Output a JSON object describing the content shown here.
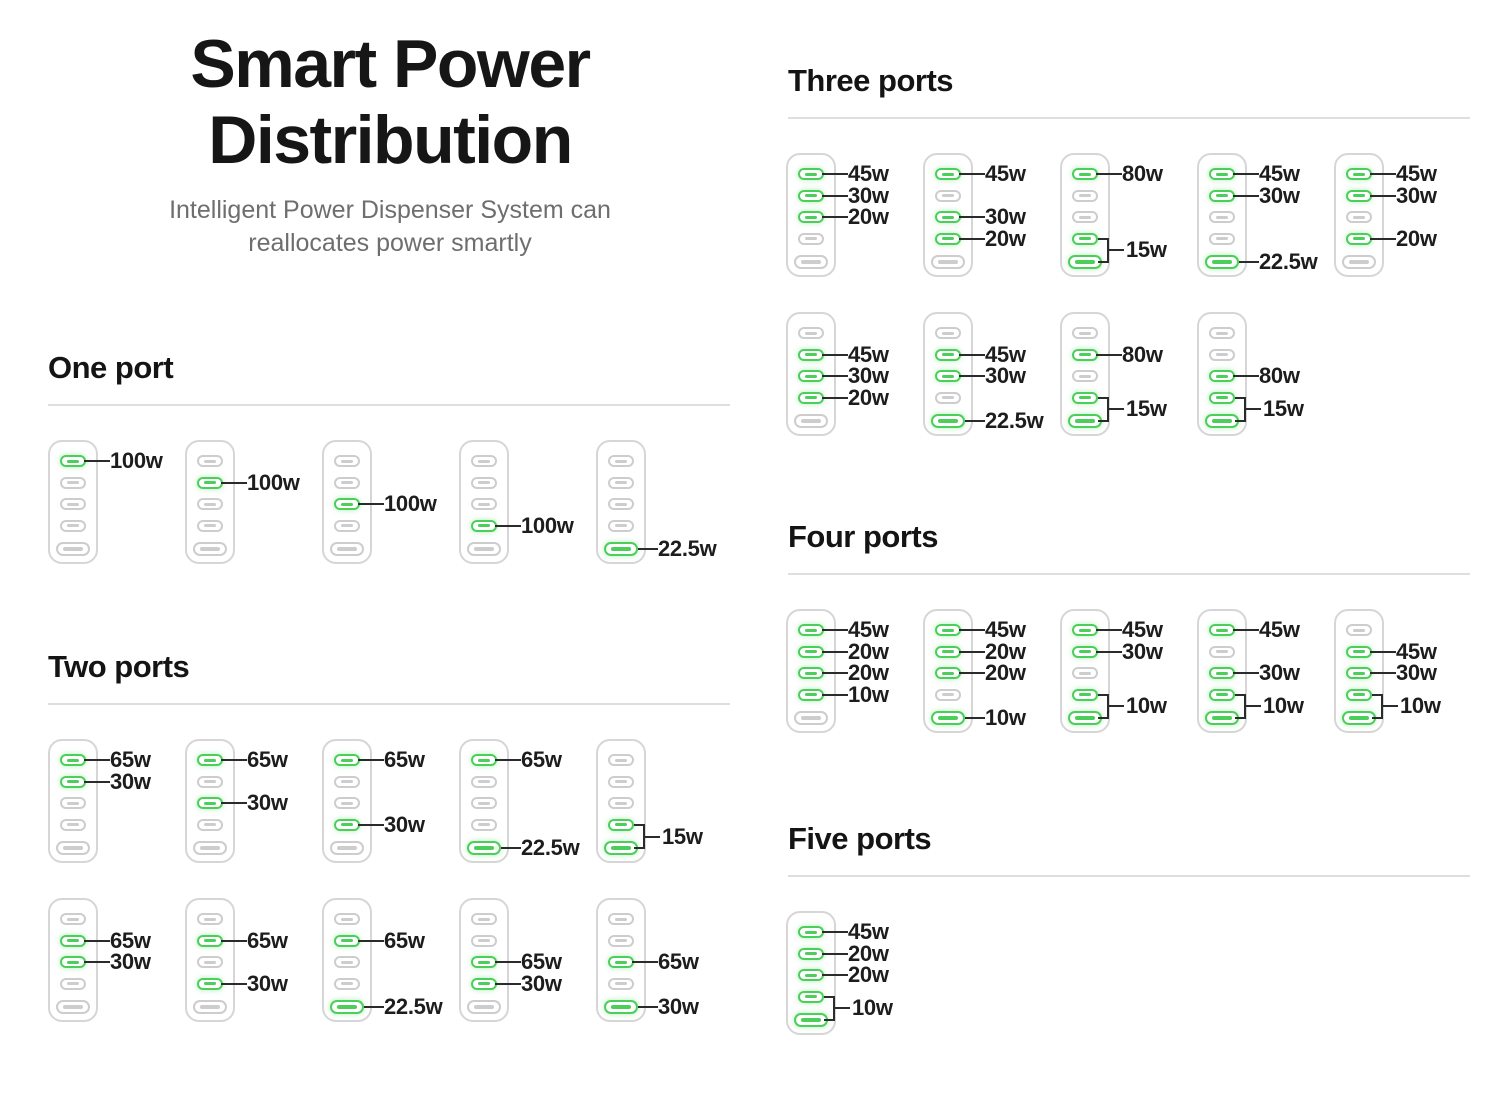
{
  "header": {
    "title_line1": "Smart Power",
    "title_line2": "Distribution",
    "subtitle_line1": "Intelligent Power Dispenser System can",
    "subtitle_line2": "reallocates power smartly"
  },
  "colors": {
    "active_green": "#4ccf5a",
    "inactive_gray": "#cdcdcd",
    "charger_outline": "#d6d6d6",
    "label_text": "#1d1d1d",
    "subtitle_gray": "#6e6e6e",
    "divider_gray": "#dedede",
    "background": "#ffffff"
  },
  "icons": {
    "usb_c_port": "small pill outline with center dash",
    "usb_a_port": "wide pill outline with center dash"
  },
  "sections": [
    {
      "id": "one-port",
      "title": "One port",
      "rows": [
        [
          {
            "ports": [
              {
                "active": true,
                "label": "100w"
              },
              {
                "active": false,
                "label": null
              },
              {
                "active": false,
                "label": null
              },
              {
                "active": false,
                "label": null
              },
              {
                "active": false,
                "label": null
              }
            ],
            "shared_label": null
          },
          {
            "ports": [
              {
                "active": false,
                "label": null
              },
              {
                "active": true,
                "label": "100w"
              },
              {
                "active": false,
                "label": null
              },
              {
                "active": false,
                "label": null
              },
              {
                "active": false,
                "label": null
              }
            ],
            "shared_label": null
          },
          {
            "ports": [
              {
                "active": false,
                "label": null
              },
              {
                "active": false,
                "label": null
              },
              {
                "active": true,
                "label": "100w"
              },
              {
                "active": false,
                "label": null
              },
              {
                "active": false,
                "label": null
              }
            ],
            "shared_label": null
          },
          {
            "ports": [
              {
                "active": false,
                "label": null
              },
              {
                "active": false,
                "label": null
              },
              {
                "active": false,
                "label": null
              },
              {
                "active": true,
                "label": "100w"
              },
              {
                "active": false,
                "label": null
              }
            ],
            "shared_label": null
          },
          {
            "ports": [
              {
                "active": false,
                "label": null
              },
              {
                "active": false,
                "label": null
              },
              {
                "active": false,
                "label": null
              },
              {
                "active": false,
                "label": null
              },
              {
                "active": true,
                "label": "22.5w"
              }
            ],
            "shared_label": null
          }
        ]
      ]
    },
    {
      "id": "two-ports",
      "title": "Two ports",
      "rows": [
        [
          {
            "ports": [
              {
                "active": true,
                "label": "65w"
              },
              {
                "active": true,
                "label": "30w"
              },
              {
                "active": false,
                "label": null
              },
              {
                "active": false,
                "label": null
              },
              {
                "active": false,
                "label": null
              }
            ],
            "shared_label": null
          },
          {
            "ports": [
              {
                "active": true,
                "label": "65w"
              },
              {
                "active": false,
                "label": null
              },
              {
                "active": true,
                "label": "30w"
              },
              {
                "active": false,
                "label": null
              },
              {
                "active": false,
                "label": null
              }
            ],
            "shared_label": null
          },
          {
            "ports": [
              {
                "active": true,
                "label": "65w"
              },
              {
                "active": false,
                "label": null
              },
              {
                "active": false,
                "label": null
              },
              {
                "active": true,
                "label": "30w"
              },
              {
                "active": false,
                "label": null
              }
            ],
            "shared_label": null
          },
          {
            "ports": [
              {
                "active": true,
                "label": "65w"
              },
              {
                "active": false,
                "label": null
              },
              {
                "active": false,
                "label": null
              },
              {
                "active": false,
                "label": null
              },
              {
                "active": true,
                "label": "22.5w"
              }
            ],
            "shared_label": null
          },
          {
            "ports": [
              {
                "active": false,
                "label": null
              },
              {
                "active": false,
                "label": null
              },
              {
                "active": false,
                "label": null
              },
              {
                "active": true,
                "label": null
              },
              {
                "active": true,
                "label": null
              }
            ],
            "shared_label": "15w"
          }
        ],
        [
          {
            "ports": [
              {
                "active": false,
                "label": null
              },
              {
                "active": true,
                "label": "65w"
              },
              {
                "active": true,
                "label": "30w"
              },
              {
                "active": false,
                "label": null
              },
              {
                "active": false,
                "label": null
              }
            ],
            "shared_label": null
          },
          {
            "ports": [
              {
                "active": false,
                "label": null
              },
              {
                "active": true,
                "label": "65w"
              },
              {
                "active": false,
                "label": null
              },
              {
                "active": true,
                "label": "30w"
              },
              {
                "active": false,
                "label": null
              }
            ],
            "shared_label": null
          },
          {
            "ports": [
              {
                "active": false,
                "label": null
              },
              {
                "active": true,
                "label": "65w"
              },
              {
                "active": false,
                "label": null
              },
              {
                "active": false,
                "label": null
              },
              {
                "active": true,
                "label": "22.5w"
              }
            ],
            "shared_label": null
          },
          {
            "ports": [
              {
                "active": false,
                "label": null
              },
              {
                "active": false,
                "label": null
              },
              {
                "active": true,
                "label": "65w"
              },
              {
                "active": true,
                "label": "30w"
              },
              {
                "active": false,
                "label": null
              }
            ],
            "shared_label": null
          },
          {
            "ports": [
              {
                "active": false,
                "label": null
              },
              {
                "active": false,
                "label": null
              },
              {
                "active": true,
                "label": "65w"
              },
              {
                "active": false,
                "label": null
              },
              {
                "active": true,
                "label": "30w"
              }
            ],
            "shared_label": null
          }
        ]
      ]
    },
    {
      "id": "three-ports",
      "title": "Three ports",
      "rows": [
        [
          {
            "ports": [
              {
                "active": true,
                "label": "45w"
              },
              {
                "active": true,
                "label": "30w"
              },
              {
                "active": true,
                "label": "20w"
              },
              {
                "active": false,
                "label": null
              },
              {
                "active": false,
                "label": null
              }
            ],
            "shared_label": null
          },
          {
            "ports": [
              {
                "active": true,
                "label": "45w"
              },
              {
                "active": false,
                "label": null
              },
              {
                "active": true,
                "label": "30w"
              },
              {
                "active": true,
                "label": "20w"
              },
              {
                "active": false,
                "label": null
              }
            ],
            "shared_label": null
          },
          {
            "ports": [
              {
                "active": true,
                "label": "80w"
              },
              {
                "active": false,
                "label": null
              },
              {
                "active": false,
                "label": null
              },
              {
                "active": true,
                "label": null
              },
              {
                "active": true,
                "label": null
              }
            ],
            "shared_label": "15w"
          },
          {
            "ports": [
              {
                "active": true,
                "label": "45w"
              },
              {
                "active": true,
                "label": "30w"
              },
              {
                "active": false,
                "label": null
              },
              {
                "active": false,
                "label": null
              },
              {
                "active": true,
                "label": "22.5w"
              }
            ],
            "shared_label": null
          },
          {
            "ports": [
              {
                "active": true,
                "label": "45w"
              },
              {
                "active": true,
                "label": "30w"
              },
              {
                "active": false,
                "label": null
              },
              {
                "active": true,
                "label": "20w"
              },
              {
                "active": false,
                "label": null
              }
            ],
            "shared_label": null
          }
        ],
        [
          {
            "ports": [
              {
                "active": false,
                "label": null
              },
              {
                "active": true,
                "label": "45w"
              },
              {
                "active": true,
                "label": "30w"
              },
              {
                "active": true,
                "label": "20w"
              },
              {
                "active": false,
                "label": null
              }
            ],
            "shared_label": null
          },
          {
            "ports": [
              {
                "active": false,
                "label": null
              },
              {
                "active": true,
                "label": "45w"
              },
              {
                "active": true,
                "label": "30w"
              },
              {
                "active": false,
                "label": null
              },
              {
                "active": true,
                "label": "22.5w"
              }
            ],
            "shared_label": null
          },
          {
            "ports": [
              {
                "active": false,
                "label": null
              },
              {
                "active": true,
                "label": "80w"
              },
              {
                "active": false,
                "label": null
              },
              {
                "active": true,
                "label": null
              },
              {
                "active": true,
                "label": null
              }
            ],
            "shared_label": "15w"
          },
          {
            "ports": [
              {
                "active": false,
                "label": null
              },
              {
                "active": false,
                "label": null
              },
              {
                "active": true,
                "label": "80w"
              },
              {
                "active": true,
                "label": null
              },
              {
                "active": true,
                "label": null
              }
            ],
            "shared_label": "15w"
          }
        ]
      ]
    },
    {
      "id": "four-ports",
      "title": "Four ports",
      "rows": [
        [
          {
            "ports": [
              {
                "active": true,
                "label": "45w"
              },
              {
                "active": true,
                "label": "20w"
              },
              {
                "active": true,
                "label": "20w"
              },
              {
                "active": true,
                "label": "10w"
              },
              {
                "active": false,
                "label": null
              }
            ],
            "shared_label": null
          },
          {
            "ports": [
              {
                "active": true,
                "label": "45w"
              },
              {
                "active": true,
                "label": "20w"
              },
              {
                "active": true,
                "label": "20w"
              },
              {
                "active": false,
                "label": null
              },
              {
                "active": true,
                "label": "10w"
              }
            ],
            "shared_label": null
          },
          {
            "ports": [
              {
                "active": true,
                "label": "45w"
              },
              {
                "active": true,
                "label": "30w"
              },
              {
                "active": false,
                "label": null
              },
              {
                "active": true,
                "label": null
              },
              {
                "active": true,
                "label": null
              }
            ],
            "shared_label": "10w"
          },
          {
            "ports": [
              {
                "active": true,
                "label": "45w"
              },
              {
                "active": false,
                "label": null
              },
              {
                "active": true,
                "label": "30w"
              },
              {
                "active": true,
                "label": null
              },
              {
                "active": true,
                "label": null
              }
            ],
            "shared_label": "10w"
          },
          {
            "ports": [
              {
                "active": false,
                "label": null
              },
              {
                "active": true,
                "label": "45w"
              },
              {
                "active": true,
                "label": "30w"
              },
              {
                "active": true,
                "label": null
              },
              {
                "active": true,
                "label": null
              }
            ],
            "shared_label": "10w"
          }
        ]
      ]
    },
    {
      "id": "five-ports",
      "title": "Five ports",
      "rows": [
        [
          {
            "ports": [
              {
                "active": true,
                "label": "45w"
              },
              {
                "active": true,
                "label": "20w"
              },
              {
                "active": true,
                "label": "20w"
              },
              {
                "active": true,
                "label": null
              },
              {
                "active": true,
                "label": null
              }
            ],
            "shared_label": "10w"
          }
        ]
      ]
    }
  ]
}
